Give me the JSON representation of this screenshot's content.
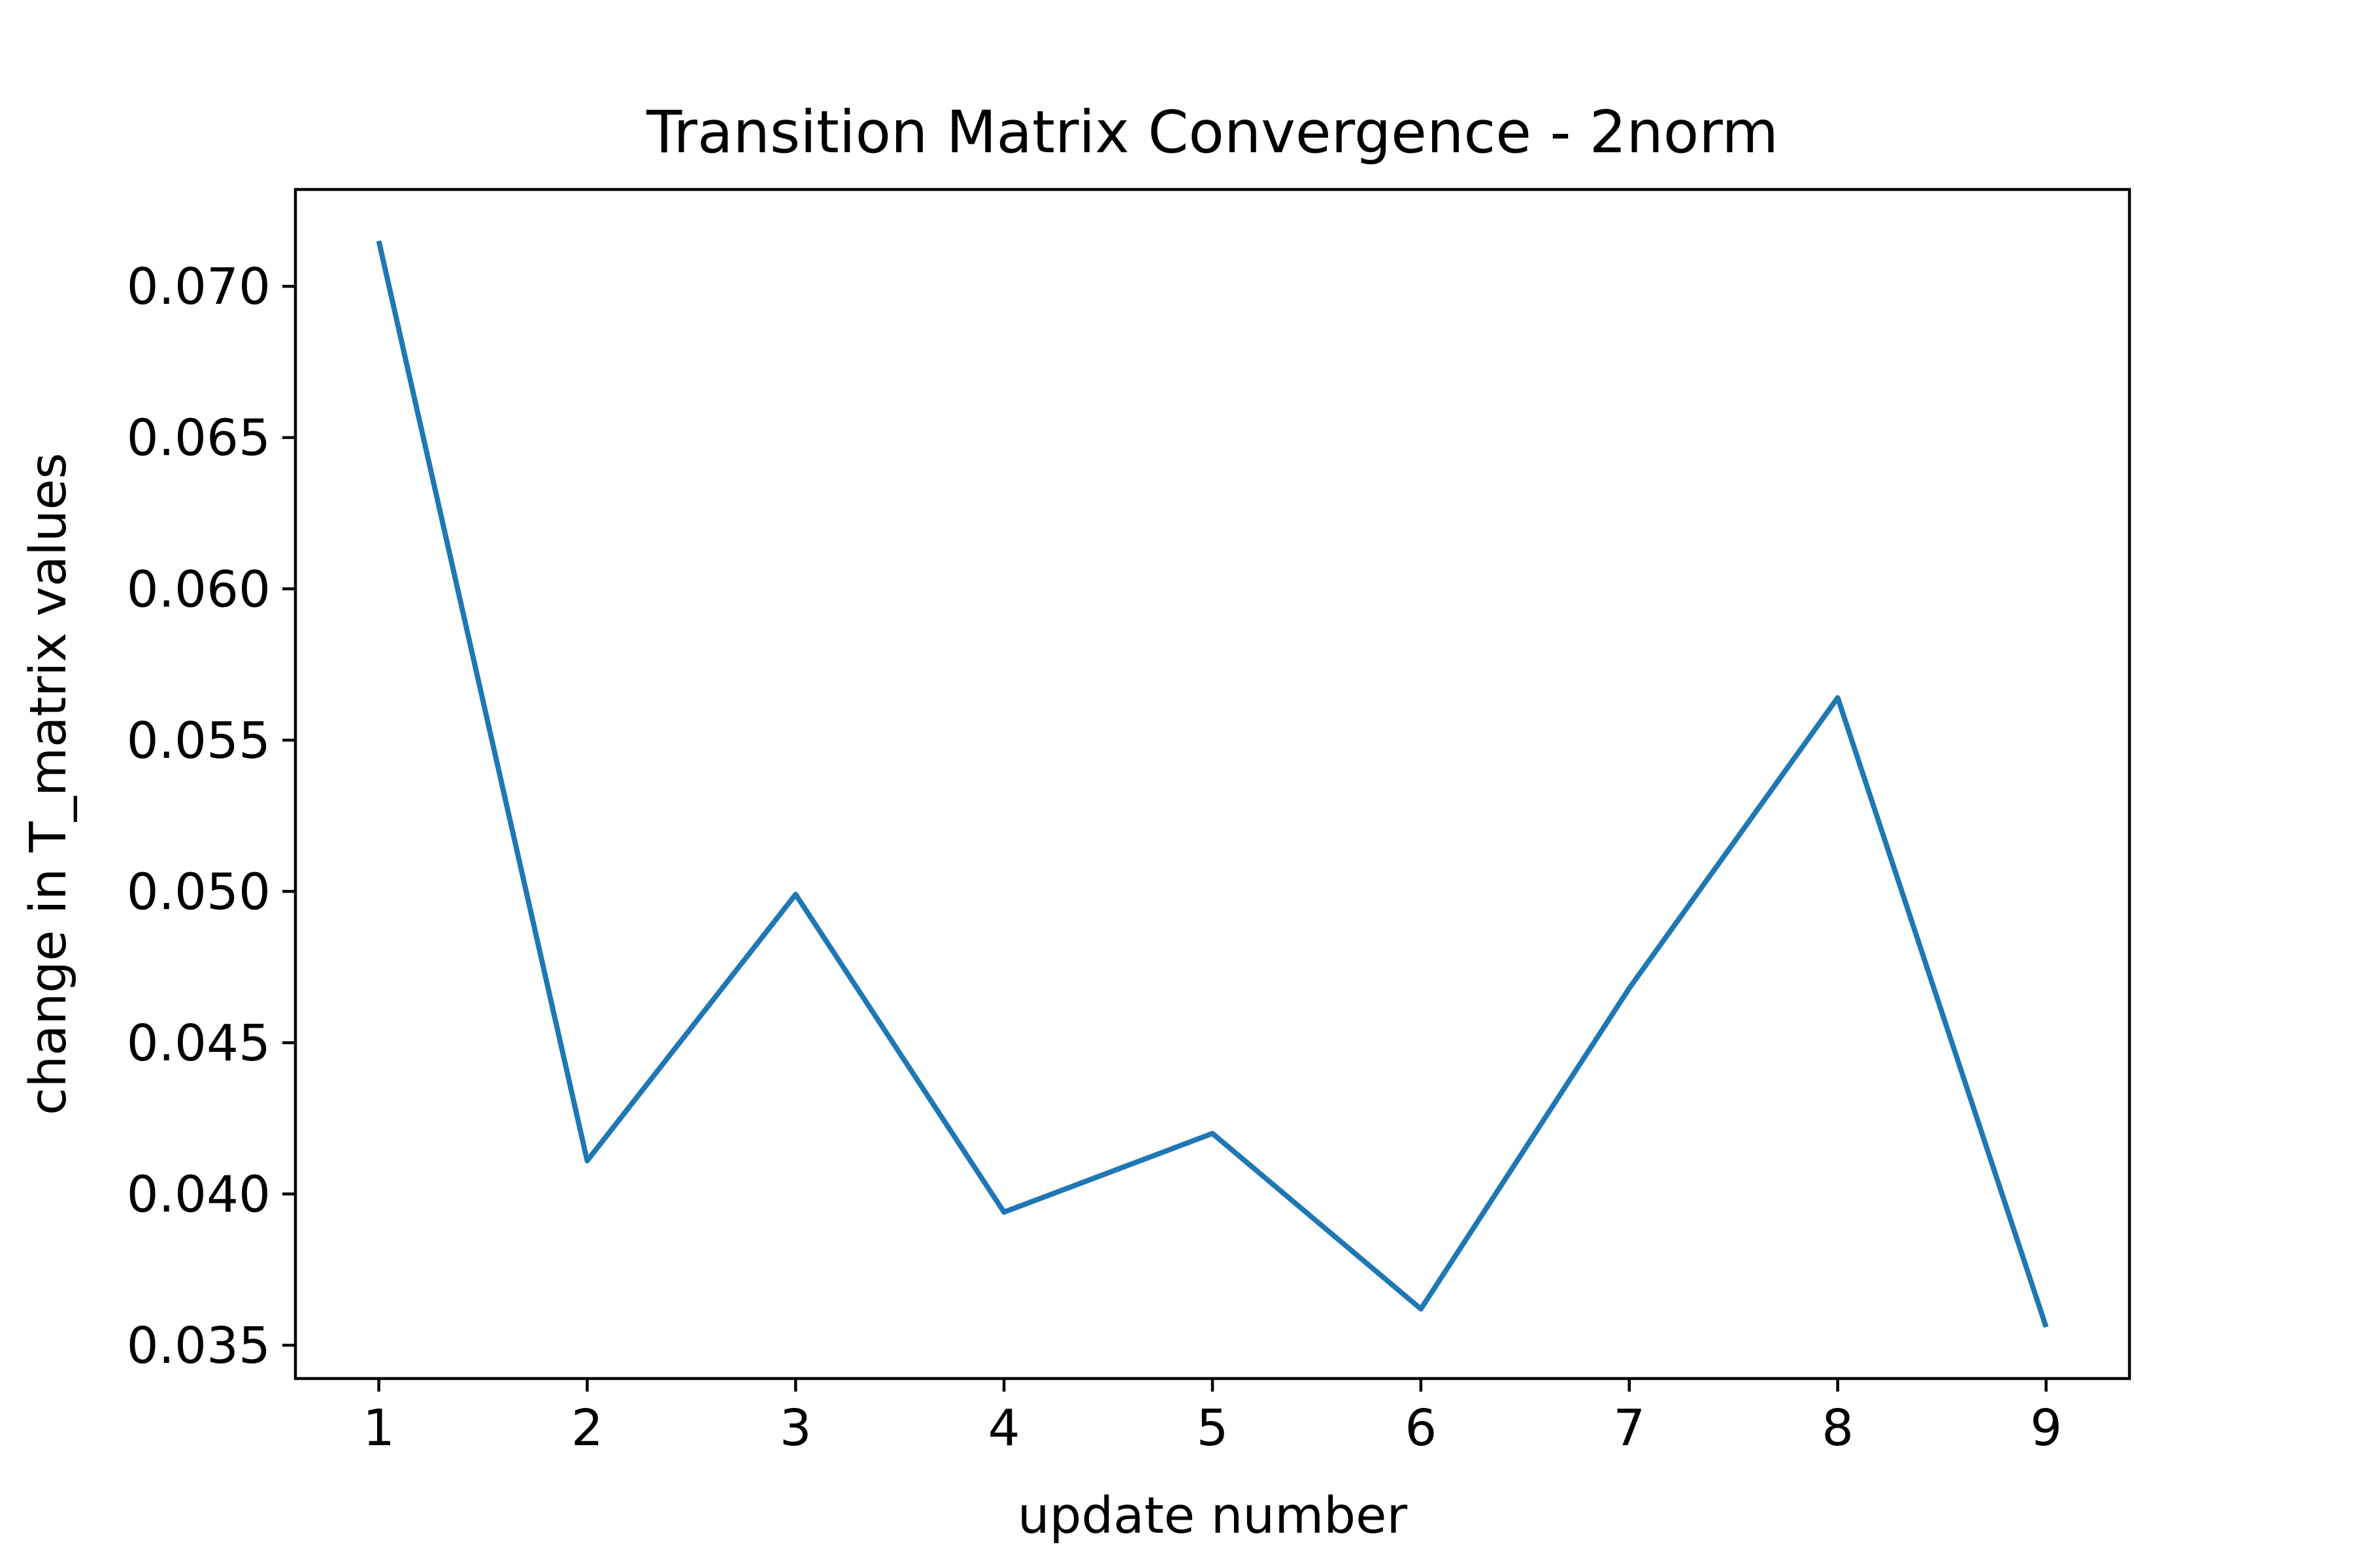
{
  "chart_data": {
    "type": "line",
    "title": "Transition Matrix Convergence - 2norm",
    "xlabel": "update number",
    "ylabel": "change in T_matrix values",
    "x": [
      1,
      2,
      3,
      4,
      5,
      6,
      7,
      8,
      9
    ],
    "series": [
      {
        "values": [
          0.0715,
          0.0411,
          0.0499,
          0.0394,
          0.042,
          0.0362,
          0.0468,
          0.0564,
          0.0356
        ],
        "color": "#1f77b4"
      }
    ],
    "xlim": [
      0.6,
      9.4
    ],
    "ylim": [
      0.0339,
      0.0732
    ],
    "xticks": [
      1,
      2,
      3,
      4,
      5,
      6,
      7,
      8,
      9
    ],
    "xtick_labels": [
      "1",
      "2",
      "3",
      "4",
      "5",
      "6",
      "7",
      "8",
      "9"
    ],
    "yticks": [
      0.035,
      0.04,
      0.045,
      0.05,
      0.055,
      0.06,
      0.065,
      0.07
    ],
    "ytick_labels": [
      "0.035",
      "0.040",
      "0.045",
      "0.050",
      "0.055",
      "0.060",
      "0.065",
      "0.070"
    ],
    "grid": false,
    "legend": "none"
  }
}
